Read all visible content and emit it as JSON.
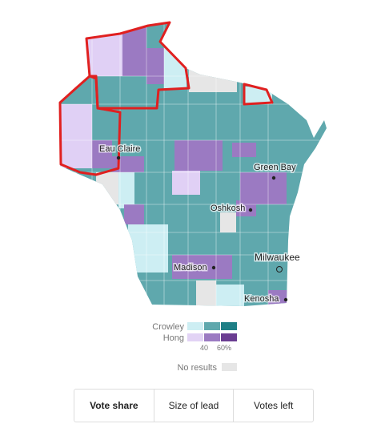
{
  "map": {
    "cities": [
      {
        "label": "Eau Claire"
      },
      {
        "label": "Green Bay"
      },
      {
        "label": "Oshkosh"
      },
      {
        "label": "Milwaukee"
      },
      {
        "label": "Madison"
      },
      {
        "label": "Kenosha"
      }
    ]
  },
  "legend": {
    "candidates": [
      "Crowley",
      "Hong"
    ],
    "scale_labels": [
      "40",
      "60%"
    ],
    "no_results": "No results"
  },
  "tabs": [
    "Vote share",
    "Size of lead",
    "Votes left"
  ]
}
